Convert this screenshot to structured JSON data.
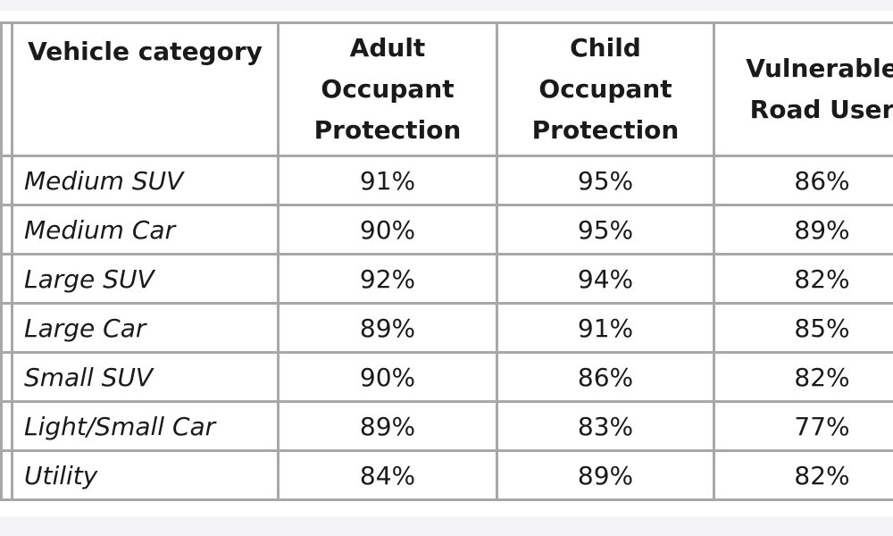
{
  "table": {
    "header": [
      "Vehicle category",
      "Adult Occupant Protection",
      "Child Occupant Protection",
      "Vulnerable Road User"
    ],
    "rows": [
      [
        "Medium SUV",
        "91%",
        "95%",
        "86%"
      ],
      [
        "Medium Car",
        "90%",
        "95%",
        "89%"
      ],
      [
        "Large SUV",
        "92%",
        "94%",
        "82%"
      ],
      [
        "Large Car",
        "89%",
        "91%",
        "85%"
      ],
      [
        "Small SUV",
        "90%",
        "86%",
        "82%"
      ],
      [
        "Light/Small Car",
        "89%",
        "83%",
        "77%"
      ],
      [
        "Utility",
        "84%",
        "89%",
        "82%"
      ]
    ]
  }
}
